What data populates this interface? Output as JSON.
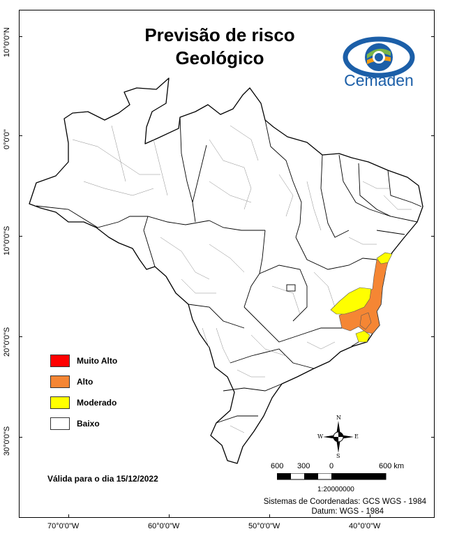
{
  "map": {
    "title_line1": "Previsão de risco",
    "title_line2": "Geológico",
    "logo_text": "Cemaden",
    "lat_labels": [
      "10°0'0\"N",
      "0°0'0\"",
      "10°0'0\"S",
      "20°0'0\"S",
      "30°0'0\"S"
    ],
    "lon_labels": [
      "70°0'0\"W",
      "60°0'0\"W",
      "50°0'0\"W",
      "40°0'0\"W"
    ],
    "legend": [
      {
        "label": "Muito Alto",
        "color": "#ff0000"
      },
      {
        "label": "Alto",
        "color": "#f58634"
      },
      {
        "label": "Moderado",
        "color": "#ffff00"
      },
      {
        "label": "Baixo",
        "color": "#ffffff"
      }
    ],
    "validity": "Válida para o dia 15/12/2022",
    "scale": {
      "labels": [
        "600",
        "300",
        "0",
        "600 km"
      ],
      "ratio": "1:20000000"
    },
    "coordinate_system": "Sistemas de Coordenadas: GCS WGS - 1984",
    "datum": "Datum: WGS - 1984",
    "compass": {
      "n": "N",
      "s": "S",
      "e": "E",
      "w": "W"
    }
  }
}
